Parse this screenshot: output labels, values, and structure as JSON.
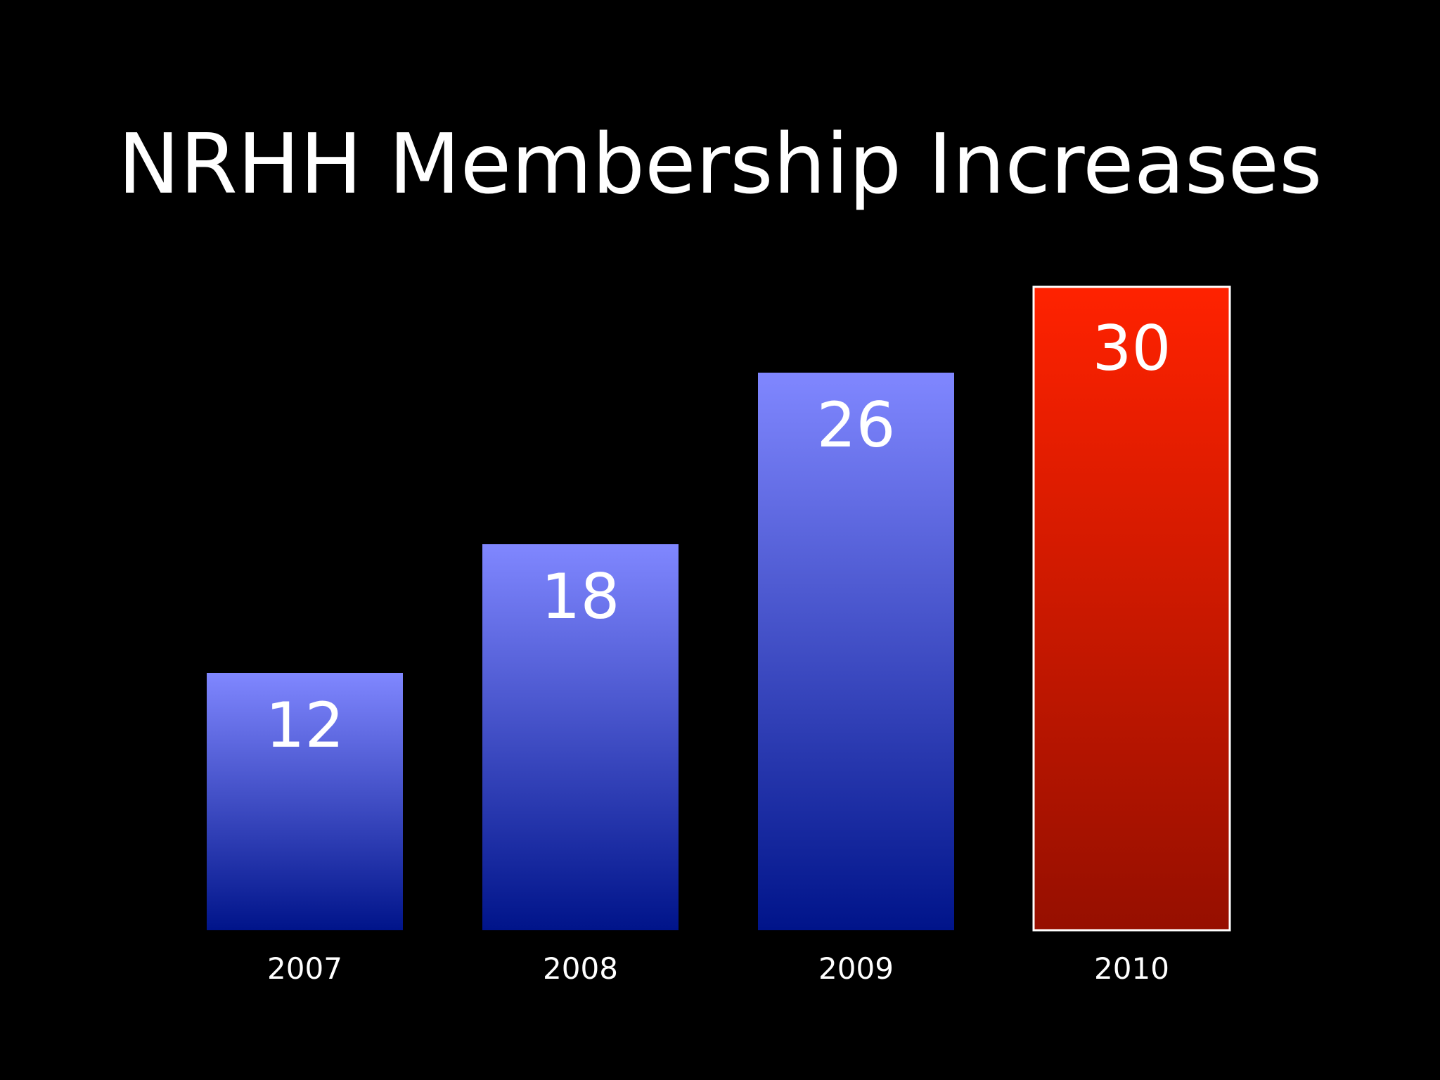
{
  "chart_data": {
    "type": "bar",
    "title": "NRHH Membership Increases",
    "categories": [
      "2007",
      "2008",
      "2009",
      "2010"
    ],
    "values": [
      12,
      18,
      26,
      30
    ],
    "value_labels": [
      "12",
      "18",
      "26",
      "30"
    ],
    "ylim": [
      0,
      30
    ],
    "grid": false,
    "axes_visible": false,
    "data_labels": "inside-top",
    "highlight_index": 3,
    "colors": {
      "background": "#000000",
      "bar_top": "#8087ff",
      "bar_bottom": "#00148a",
      "highlight_top": "#ff2200",
      "highlight_bottom": "#960f00",
      "highlight_border": "#ffffff",
      "text": "#ffffff"
    }
  }
}
